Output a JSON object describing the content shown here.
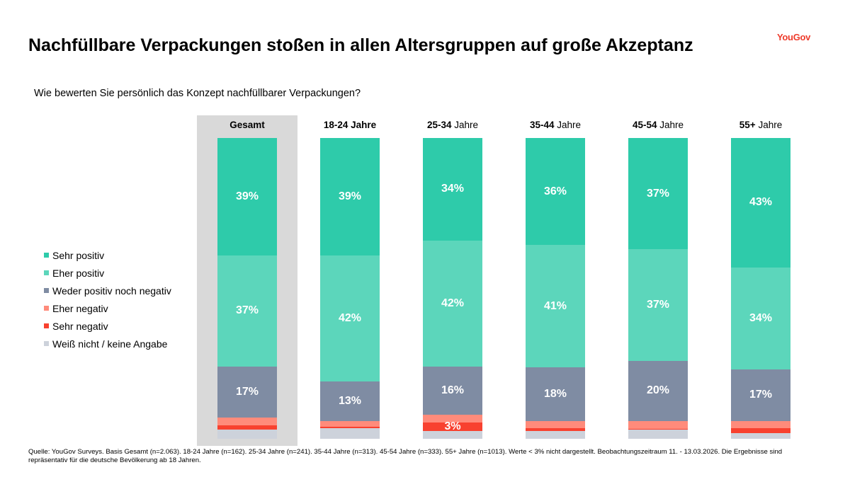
{
  "title": "Nachfüllbare Verpackungen stoßen in allen Altersgruppen auf große Akzeptanz",
  "logo": "YouGov",
  "question": "Wie bewerten Sie persönlich das Konzept nachfüllbarer Verpackungen?",
  "source": "Quelle: YouGov Surveys. Basis Gesamt (n=2.063). 18-24 Jahre (n=162). 25-34 Jahre (n=241). 35-44 Jahre (n=313). 45-54 Jahre (n=333). 55+ Jahre (n=1013). Werte < 3% nicht dargestellt. Beobachtungszeitraum 11. - 13.03.2026. Die Ergebnisse sind repräsentativ für die deutsche Bevölkerung ab 18 Jahren.",
  "chart_data": {
    "type": "bar",
    "stacked": true,
    "orientation": "vertical",
    "legend_position": "left",
    "categories": [
      {
        "a": "Gesamt",
        "b": ""
      },
      {
        "a": "18-24 Jahre",
        "b": ""
      },
      {
        "a": "25-34",
        "b": "Jahre"
      },
      {
        "a": "35-44",
        "b": "Jahre"
      },
      {
        "a": "45-54",
        "b": "Jahre"
      },
      {
        "a": "55+",
        "b": "Jahre"
      }
    ],
    "series": [
      {
        "name": "Sehr positiv",
        "color": "#2ecbaa",
        "values": [
          39,
          39,
          34,
          36,
          37,
          43
        ],
        "labels": [
          "39%",
          "39%",
          "34%",
          "36%",
          "37%",
          "43%"
        ]
      },
      {
        "name": "Eher positiv",
        "color": "#5cd6bb",
        "values": [
          37,
          42,
          42,
          41,
          37,
          34
        ],
        "labels": [
          "37%",
          "42%",
          "42%",
          "41%",
          "37%",
          "34%"
        ]
      },
      {
        "name": "Weder positiv noch negativ",
        "color": "#7f8ca3",
        "values": [
          17,
          13,
          16,
          18,
          20,
          17
        ],
        "labels": [
          "17%",
          "13%",
          "16%",
          "18%",
          "20%",
          "17%"
        ]
      },
      {
        "name": "Eher negativ",
        "color": "#ff8b7b",
        "values": [
          2.5,
          2,
          2.5,
          2.5,
          2.7,
          2.5
        ],
        "labels": [
          "",
          "",
          "",
          "",
          "",
          ""
        ]
      },
      {
        "name": "Sehr negativ",
        "color": "#f8412f",
        "values": [
          1.5,
          0.5,
          3,
          1,
          0.3,
          1.5
        ],
        "labels": [
          "",
          "",
          "3%",
          "",
          "",
          ""
        ]
      },
      {
        "name": "Weiß nicht / keine Angabe",
        "color": "#cdd2db",
        "values": [
          3,
          3.5,
          2.5,
          2.5,
          3,
          2
        ],
        "labels": [
          "",
          "",
          "",
          "",
          "",
          ""
        ]
      }
    ]
  }
}
